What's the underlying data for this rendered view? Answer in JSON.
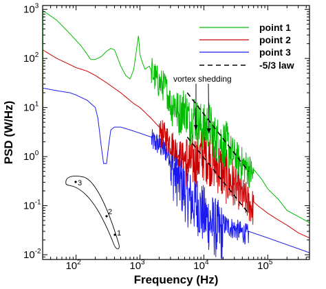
{
  "chart_data": {
    "type": "line",
    "xlabel": "Frequency (Hz)",
    "ylabel": "PSD (W/Hz)",
    "xscale": "log",
    "yscale": "log",
    "xlim": [
      30,
      450000
    ],
    "ylim": [
      0.008,
      1200
    ],
    "x_ticks": [
      {
        "base": "10",
        "exp": "2",
        "value": 100
      },
      {
        "base": "10",
        "exp": "3",
        "value": 1000
      },
      {
        "base": "10",
        "exp": "4",
        "value": 10000
      },
      {
        "base": "10",
        "exp": "5",
        "value": 100000
      }
    ],
    "y_ticks": [
      {
        "base": "10",
        "exp": "-2",
        "value": 0.01
      },
      {
        "base": "10",
        "exp": "-1",
        "value": 0.1
      },
      {
        "base": "10",
        "exp": "0",
        "value": 1
      },
      {
        "base": "10",
        "exp": "1",
        "value": 10
      },
      {
        "base": "10",
        "exp": "2",
        "value": 100
      },
      {
        "base": "10",
        "exp": "3",
        "value": 1000
      }
    ],
    "grid": false,
    "legend_position": "top-right",
    "series": [
      {
        "name": "point 1",
        "color": "#00bb00",
        "style": "solid",
        "points": [
          [
            30,
            950
          ],
          [
            50,
            600
          ],
          [
            80,
            320
          ],
          [
            120,
            180
          ],
          [
            150,
            120
          ],
          [
            170,
            95
          ],
          [
            200,
            95
          ],
          [
            250,
            110
          ],
          [
            300,
            140
          ],
          [
            350,
            160
          ],
          [
            400,
            150
          ],
          [
            450,
            100
          ],
          [
            500,
            70
          ],
          [
            600,
            45
          ],
          [
            700,
            38
          ],
          [
            800,
            60
          ],
          [
            900,
            180
          ],
          [
            950,
            300
          ],
          [
            1000,
            120
          ],
          [
            1100,
            80
          ],
          [
            1200,
            60
          ],
          [
            1400,
            70
          ],
          [
            1500,
            55
          ],
          [
            1700,
            40
          ],
          [
            2000,
            30
          ],
          [
            2500,
            25
          ],
          [
            3000,
            12
          ],
          [
            3500,
            15
          ],
          [
            4000,
            8
          ],
          [
            5000,
            12
          ],
          [
            6000,
            6
          ],
          [
            7000,
            9
          ],
          [
            8000,
            6
          ],
          [
            10000,
            5
          ],
          [
            12000,
            6
          ],
          [
            15000,
            3
          ],
          [
            20000,
            2.5
          ],
          [
            25000,
            2
          ],
          [
            30000,
            1.5
          ],
          [
            40000,
            1
          ],
          [
            50000,
            0.8
          ],
          [
            60000,
            0.55
          ],
          [
            80000,
            0.35
          ],
          [
            100000,
            0.22
          ],
          [
            150000,
            0.13
          ],
          [
            200000,
            0.08
          ],
          [
            300000,
            0.06
          ],
          [
            450000,
            0.045
          ]
        ],
        "noise": [
          {
            "x": [
              1500,
              3000
            ],
            "lo": 0.5,
            "hi": 2.2
          },
          {
            "x": [
              3000,
              6000
            ],
            "lo": 0.3,
            "hi": 2.5
          },
          {
            "x": [
              6000,
              25000
            ],
            "lo": 0.25,
            "hi": 2.4
          },
          {
            "x": [
              25000,
              60000
            ],
            "lo": 0.3,
            "hi": 1.6
          }
        ]
      },
      {
        "name": "point 2",
        "color": "#cc0000",
        "style": "solid",
        "points": [
          [
            30,
            150
          ],
          [
            50,
            100
          ],
          [
            80,
            75
          ],
          [
            100,
            65
          ],
          [
            150,
            55
          ],
          [
            200,
            45
          ],
          [
            300,
            32
          ],
          [
            500,
            20
          ],
          [
            800,
            12
          ],
          [
            1000,
            10
          ],
          [
            1500,
            6
          ],
          [
            2000,
            4
          ],
          [
            3000,
            2.5
          ],
          [
            4000,
            1.5
          ],
          [
            6000,
            1
          ],
          [
            8000,
            1.2
          ],
          [
            10000,
            1.5
          ],
          [
            15000,
            1
          ],
          [
            20000,
            0.6
          ],
          [
            30000,
            0.35
          ],
          [
            50000,
            0.15
          ],
          [
            70000,
            0.1
          ],
          [
            100000,
            0.07
          ],
          [
            150000,
            0.05
          ],
          [
            200000,
            0.04
          ],
          [
            300000,
            0.028
          ],
          [
            450000,
            0.022
          ]
        ],
        "noise": [
          {
            "x": [
              2000,
              5000
            ],
            "lo": 0.4,
            "hi": 1.6
          },
          {
            "x": [
              5000,
              30000
            ],
            "lo": 0.2,
            "hi": 2.8
          },
          {
            "x": [
              30000,
              60000
            ],
            "lo": 0.3,
            "hi": 1.8
          }
        ]
      },
      {
        "name": "point 3",
        "color": "#1a1aee",
        "style": "solid",
        "points": [
          [
            30,
            25
          ],
          [
            50,
            22
          ],
          [
            80,
            20
          ],
          [
            100,
            18
          ],
          [
            150,
            14
          ],
          [
            200,
            10
          ],
          [
            220,
            6
          ],
          [
            250,
            1.5
          ],
          [
            270,
            0.72
          ],
          [
            300,
            0.72
          ],
          [
            320,
            1.5
          ],
          [
            350,
            3.5
          ],
          [
            400,
            4
          ],
          [
            500,
            4
          ],
          [
            700,
            3.5
          ],
          [
            1000,
            3
          ],
          [
            1500,
            2.5
          ],
          [
            2000,
            2
          ],
          [
            3000,
            1.2
          ],
          [
            4000,
            0.7
          ],
          [
            5000,
            0.4
          ],
          [
            6000,
            0.25
          ],
          [
            8000,
            0.2
          ],
          [
            10000,
            0.12
          ],
          [
            15000,
            0.07
          ],
          [
            20000,
            0.05
          ],
          [
            30000,
            0.04
          ],
          [
            50000,
            0.03
          ],
          [
            100000,
            0.022
          ],
          [
            200000,
            0.016
          ],
          [
            450000,
            0.011
          ]
        ],
        "noise": [
          {
            "x": [
              1500,
              3000
            ],
            "lo": 0.5,
            "hi": 1.5
          },
          {
            "x": [
              3000,
              20000
            ],
            "lo": 0.12,
            "hi": 2.2
          },
          {
            "x": [
              20000,
              50000
            ],
            "lo": 0.5,
            "hi": 1.4
          }
        ]
      },
      {
        "name": "-5/3 law",
        "color": "#000000",
        "style": "dashed",
        "lines": [
          [
            [
              5500,
              20
            ],
            [
              50000,
              0.5
            ]
          ],
          [
            [
              5500,
              2.5
            ],
            [
              50000,
              0.07
            ]
          ]
        ]
      }
    ],
    "annotations": [
      {
        "text": "vortex shedding",
        "x": 13000,
        "y": 55,
        "arrows_to": [
          [
            7500,
            3.5
          ],
          [
            12000,
            3
          ]
        ]
      }
    ],
    "inset": {
      "labels": [
        "3",
        "2",
        "1"
      ]
    }
  }
}
